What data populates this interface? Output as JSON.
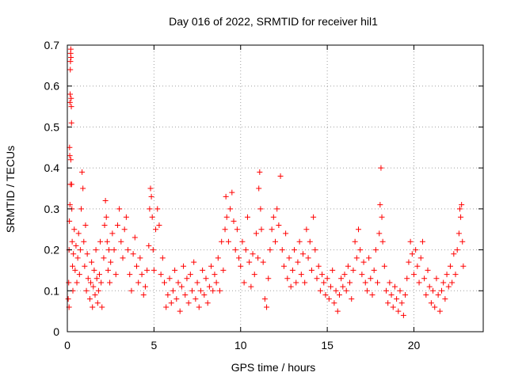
{
  "chart_data": {
    "type": "scatter",
    "title": "Day 016 of 2022, SRMTID for receiver hil1",
    "xlabel": "GPS time / hours",
    "ylabel": "SRMTID / TECUs",
    "xlim": [
      0,
      24
    ],
    "ylim": [
      0,
      0.7
    ],
    "xticks": [
      0,
      5,
      10,
      15,
      20
    ],
    "xtick_labels": [
      "0",
      "5",
      "10",
      "15",
      "20"
    ],
    "yticks": [
      0,
      0.1,
      0.2,
      0.3,
      0.4,
      0.5,
      0.6,
      0.7
    ],
    "ytick_labels": [
      "0",
      "0.1",
      "0.2",
      "0.3",
      "0.4",
      "0.5",
      "0.6",
      "0.7"
    ],
    "grid": true,
    "marker": "+",
    "marker_color": "#ff0000",
    "series": [
      {
        "name": "hil1",
        "points": [
          [
            0.05,
            0.08
          ],
          [
            0.08,
            0.12
          ],
          [
            0.1,
            0.2
          ],
          [
            0.12,
            0.27
          ],
          [
            0.13,
            0.45
          ],
          [
            0.14,
            0.43
          ],
          [
            0.15,
            0.56
          ],
          [
            0.16,
            0.58
          ],
          [
            0.17,
            0.64
          ],
          [
            0.18,
            0.66
          ],
          [
            0.19,
            0.68
          ],
          [
            0.2,
            0.69
          ],
          [
            0.21,
            0.67
          ],
          [
            0.22,
            0.57
          ],
          [
            0.23,
            0.55
          ],
          [
            0.24,
            0.51
          ],
          [
            0.25,
            0.36
          ],
          [
            0.26,
            0.3
          ],
          [
            0.28,
            0.22
          ],
          [
            0.3,
            0.16
          ],
          [
            0.32,
            0.1
          ],
          [
            0.1,
            0.06
          ],
          [
            0.15,
            0.31
          ],
          [
            0.18,
            0.36
          ],
          [
            0.2,
            0.42
          ],
          [
            0.35,
            0.19
          ],
          [
            0.4,
            0.25
          ],
          [
            0.45,
            0.15
          ],
          [
            0.5,
            0.21
          ],
          [
            0.55,
            0.12
          ],
          [
            0.6,
            0.18
          ],
          [
            0.65,
            0.24
          ],
          [
            0.7,
            0.14
          ],
          [
            0.75,
            0.2
          ],
          [
            0.8,
            0.3
          ],
          [
            0.85,
            0.39
          ],
          [
            0.9,
            0.35
          ],
          [
            0.95,
            0.22
          ],
          [
            1.0,
            0.16
          ],
          [
            1.05,
            0.26
          ],
          [
            1.1,
            0.1
          ],
          [
            1.15,
            0.19
          ],
          [
            1.2,
            0.13
          ],
          [
            1.3,
            0.08
          ],
          [
            1.35,
            0.12
          ],
          [
            1.4,
            0.17
          ],
          [
            1.45,
            0.06
          ],
          [
            1.5,
            0.11
          ],
          [
            1.55,
            0.15
          ],
          [
            1.6,
            0.09
          ],
          [
            1.65,
            0.2
          ],
          [
            1.7,
            0.13
          ],
          [
            1.75,
            0.07
          ],
          [
            1.8,
            0.1
          ],
          [
            1.85,
            0.14
          ],
          [
            1.9,
            0.22
          ],
          [
            1.95,
            0.12
          ],
          [
            2.0,
            0.06
          ],
          [
            2.1,
            0.18
          ],
          [
            2.15,
            0.26
          ],
          [
            2.2,
            0.32
          ],
          [
            2.25,
            0.28
          ],
          [
            2.3,
            0.22
          ],
          [
            2.35,
            0.15
          ],
          [
            2.4,
            0.2
          ],
          [
            2.45,
            0.12
          ],
          [
            2.5,
            0.17
          ],
          [
            2.6,
            0.24
          ],
          [
            2.7,
            0.2
          ],
          [
            2.8,
            0.14
          ],
          [
            2.9,
            0.26
          ],
          [
            3.0,
            0.3
          ],
          [
            3.1,
            0.22
          ],
          [
            3.2,
            0.18
          ],
          [
            3.3,
            0.25
          ],
          [
            3.4,
            0.28
          ],
          [
            3.5,
            0.2
          ],
          [
            3.6,
            0.14
          ],
          [
            3.7,
            0.1
          ],
          [
            3.8,
            0.19
          ],
          [
            3.9,
            0.23
          ],
          [
            4.0,
            0.16
          ],
          [
            4.1,
            0.12
          ],
          [
            4.2,
            0.18
          ],
          [
            4.3,
            0.14
          ],
          [
            4.4,
            0.09
          ],
          [
            4.5,
            0.11
          ],
          [
            4.6,
            0.15
          ],
          [
            4.7,
            0.21
          ],
          [
            4.75,
            0.3
          ],
          [
            4.8,
            0.35
          ],
          [
            4.85,
            0.33
          ],
          [
            4.9,
            0.28
          ],
          [
            4.95,
            0.2
          ],
          [
            5.0,
            0.15
          ],
          [
            5.1,
            0.25
          ],
          [
            5.2,
            0.3
          ],
          [
            5.3,
            0.26
          ],
          [
            5.4,
            0.14
          ],
          [
            5.5,
            0.18
          ],
          [
            5.6,
            0.12
          ],
          [
            5.7,
            0.06
          ],
          [
            5.8,
            0.09
          ],
          [
            5.9,
            0.13
          ],
          [
            6.0,
            0.07
          ],
          [
            6.1,
            0.1
          ],
          [
            6.2,
            0.15
          ],
          [
            6.3,
            0.08
          ],
          [
            6.4,
            0.12
          ],
          [
            6.5,
            0.05
          ],
          [
            6.6,
            0.11
          ],
          [
            6.7,
            0.16
          ],
          [
            6.8,
            0.09
          ],
          [
            6.9,
            0.13
          ],
          [
            7.0,
            0.07
          ],
          [
            7.1,
            0.14
          ],
          [
            7.2,
            0.1
          ],
          [
            7.3,
            0.17
          ],
          [
            7.4,
            0.08
          ],
          [
            7.5,
            0.12
          ],
          [
            7.6,
            0.06
          ],
          [
            7.7,
            0.1
          ],
          [
            7.8,
            0.15
          ],
          [
            7.9,
            0.09
          ],
          [
            8.0,
            0.13
          ],
          [
            8.1,
            0.07
          ],
          [
            8.2,
            0.11
          ],
          [
            8.3,
            0.16
          ],
          [
            8.4,
            0.1
          ],
          [
            8.5,
            0.14
          ],
          [
            8.6,
            0.12
          ],
          [
            8.7,
            0.18
          ],
          [
            8.8,
            0.1
          ],
          [
            8.9,
            0.22
          ],
          [
            9.0,
            0.15
          ],
          [
            9.1,
            0.25
          ],
          [
            9.15,
            0.33
          ],
          [
            9.2,
            0.28
          ],
          [
            9.3,
            0.22
          ],
          [
            9.4,
            0.3
          ],
          [
            9.5,
            0.34
          ],
          [
            9.6,
            0.27
          ],
          [
            9.7,
            0.2
          ],
          [
            9.8,
            0.25
          ],
          [
            9.9,
            0.18
          ],
          [
            10.0,
            0.16
          ],
          [
            10.1,
            0.22
          ],
          [
            10.2,
            0.12
          ],
          [
            10.3,
            0.2
          ],
          [
            10.4,
            0.28
          ],
          [
            10.5,
            0.17
          ],
          [
            10.6,
            0.11
          ],
          [
            10.7,
            0.19
          ],
          [
            10.8,
            0.14
          ],
          [
            10.9,
            0.24
          ],
          [
            11.0,
            0.18
          ],
          [
            11.05,
            0.35
          ],
          [
            11.1,
            0.39
          ],
          [
            11.15,
            0.3
          ],
          [
            11.2,
            0.25
          ],
          [
            11.3,
            0.17
          ],
          [
            11.4,
            0.08
          ],
          [
            11.5,
            0.06
          ],
          [
            11.6,
            0.13
          ],
          [
            11.7,
            0.2
          ],
          [
            11.8,
            0.25
          ],
          [
            11.9,
            0.28
          ],
          [
            12.0,
            0.22
          ],
          [
            12.1,
            0.3
          ],
          [
            12.2,
            0.26
          ],
          [
            12.3,
            0.38
          ],
          [
            12.4,
            0.2
          ],
          [
            12.5,
            0.16
          ],
          [
            12.6,
            0.24
          ],
          [
            12.7,
            0.13
          ],
          [
            12.8,
            0.18
          ],
          [
            12.9,
            0.11
          ],
          [
            13.0,
            0.15
          ],
          [
            13.1,
            0.2
          ],
          [
            13.2,
            0.12
          ],
          [
            13.3,
            0.17
          ],
          [
            13.4,
            0.22
          ],
          [
            13.5,
            0.14
          ],
          [
            13.6,
            0.19
          ],
          [
            13.7,
            0.12
          ],
          [
            13.8,
            0.25
          ],
          [
            13.9,
            0.18
          ],
          [
            14.0,
            0.22
          ],
          [
            14.1,
            0.15
          ],
          [
            14.2,
            0.28
          ],
          [
            14.3,
            0.2
          ],
          [
            14.4,
            0.13
          ],
          [
            14.5,
            0.16
          ],
          [
            14.6,
            0.1
          ],
          [
            14.7,
            0.14
          ],
          [
            14.8,
            0.12
          ],
          [
            14.9,
            0.09
          ],
          [
            15.0,
            0.13
          ],
          [
            15.1,
            0.08
          ],
          [
            15.2,
            0.11
          ],
          [
            15.3,
            0.15
          ],
          [
            15.4,
            0.07
          ],
          [
            15.5,
            0.1
          ],
          [
            15.6,
            0.05
          ],
          [
            15.7,
            0.09
          ],
          [
            15.8,
            0.13
          ],
          [
            15.9,
            0.11
          ],
          [
            16.0,
            0.14
          ],
          [
            16.1,
            0.1
          ],
          [
            16.2,
            0.16
          ],
          [
            16.3,
            0.12
          ],
          [
            16.4,
            0.08
          ],
          [
            16.5,
            0.15
          ],
          [
            16.6,
            0.22
          ],
          [
            16.7,
            0.18
          ],
          [
            16.8,
            0.25
          ],
          [
            16.9,
            0.2
          ],
          [
            17.0,
            0.14
          ],
          [
            17.1,
            0.17
          ],
          [
            17.2,
            0.12
          ],
          [
            17.3,
            0.1
          ],
          [
            17.4,
            0.18
          ],
          [
            17.5,
            0.13
          ],
          [
            17.6,
            0.09
          ],
          [
            17.7,
            0.15
          ],
          [
            17.8,
            0.2
          ],
          [
            17.9,
            0.12
          ],
          [
            18.0,
            0.24
          ],
          [
            18.05,
            0.31
          ],
          [
            18.1,
            0.4
          ],
          [
            18.15,
            0.28
          ],
          [
            18.2,
            0.22
          ],
          [
            18.3,
            0.16
          ],
          [
            18.4,
            0.1
          ],
          [
            18.5,
            0.07
          ],
          [
            18.6,
            0.12
          ],
          [
            18.7,
            0.09
          ],
          [
            18.8,
            0.06
          ],
          [
            18.9,
            0.11
          ],
          [
            19.0,
            0.08
          ],
          [
            19.1,
            0.05
          ],
          [
            19.2,
            0.1
          ],
          [
            19.3,
            0.07
          ],
          [
            19.4,
            0.04
          ],
          [
            19.5,
            0.09
          ],
          [
            19.6,
            0.13
          ],
          [
            19.7,
            0.17
          ],
          [
            19.8,
            0.22
          ],
          [
            19.9,
            0.19
          ],
          [
            20.0,
            0.14
          ],
          [
            20.1,
            0.2
          ],
          [
            20.2,
            0.16
          ],
          [
            20.3,
            0.12
          ],
          [
            20.4,
            0.18
          ],
          [
            20.5,
            0.22
          ],
          [
            20.6,
            0.13
          ],
          [
            20.7,
            0.09
          ],
          [
            20.8,
            0.15
          ],
          [
            20.9,
            0.11
          ],
          [
            21.0,
            0.07
          ],
          [
            21.1,
            0.1
          ],
          [
            21.2,
            0.06
          ],
          [
            21.3,
            0.13
          ],
          [
            21.4,
            0.09
          ],
          [
            21.5,
            0.05
          ],
          [
            21.6,
            0.1
          ],
          [
            21.7,
            0.12
          ],
          [
            21.8,
            0.08
          ],
          [
            21.9,
            0.14
          ],
          [
            22.0,
            0.11
          ],
          [
            22.1,
            0.16
          ],
          [
            22.2,
            0.12
          ],
          [
            22.3,
            0.19
          ],
          [
            22.4,
            0.14
          ],
          [
            22.5,
            0.2
          ],
          [
            22.6,
            0.24
          ],
          [
            22.65,
            0.3
          ],
          [
            22.7,
            0.28
          ],
          [
            22.75,
            0.31
          ],
          [
            22.8,
            0.22
          ],
          [
            22.85,
            0.16
          ]
        ]
      }
    ]
  }
}
